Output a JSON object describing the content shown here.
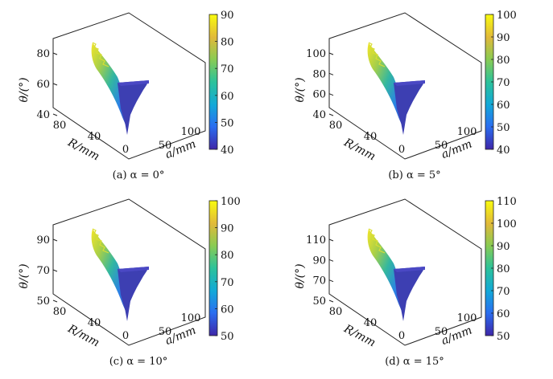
{
  "figure": {
    "panels": [
      {
        "caption": "(a) α = 0°",
        "z_ticks": [
          "40",
          "60",
          "80"
        ],
        "colorbar_ticks": [
          "40",
          "50",
          "60",
          "70",
          "80",
          "90"
        ]
      },
      {
        "caption": "(b) α = 5°",
        "z_ticks": [
          "40",
          "60",
          "80",
          "100"
        ],
        "colorbar_ticks": [
          "40",
          "50",
          "60",
          "70",
          "80",
          "90",
          "100"
        ]
      },
      {
        "caption": "(c) α = 10°",
        "z_ticks": [
          "50",
          "70",
          "90"
        ],
        "colorbar_ticks": [
          "50",
          "60",
          "70",
          "80",
          "90",
          "100"
        ]
      },
      {
        "caption": "(d) α = 15°",
        "z_ticks": [
          "50",
          "70",
          "90",
          "110"
        ],
        "colorbar_ticks": [
          "50",
          "60",
          "70",
          "80",
          "90",
          "100",
          "110"
        ]
      }
    ],
    "axis_labels": {
      "z": "θ/(°)",
      "y": "R/mm",
      "x": "a/mm"
    },
    "y_ticks": [
      "80",
      "40",
      "0"
    ],
    "x_ticks": [
      "50",
      "100"
    ],
    "colormap": [
      "#3e26a8",
      "#2a6ef0",
      "#12a8d8",
      "#2cc29a",
      "#8bcb52",
      "#e1b93a",
      "#f9fb0e"
    ]
  },
  "chart_data": [
    {
      "type": "surface",
      "title": "(a) α = 0°",
      "xlabel": "a/mm",
      "ylabel": "R/mm",
      "zlabel": "θ/(°)",
      "xlim": [
        0,
        120
      ],
      "ylim": [
        0,
        100
      ],
      "zlim": [
        35,
        90
      ],
      "x_ticks": [
        50,
        100
      ],
      "y_ticks": [
        0,
        40,
        80
      ],
      "z_ticks": [
        40,
        60,
        80
      ],
      "colorbar": {
        "range": [
          40,
          90
        ],
        "ticks": [
          40,
          50,
          60,
          70,
          80,
          90
        ]
      },
      "approx_theta_range": [
        40,
        90
      ]
    },
    {
      "type": "surface",
      "title": "(b) α = 5°",
      "xlabel": "a/mm",
      "ylabel": "R/mm",
      "zlabel": "θ/(°)",
      "xlim": [
        0,
        120
      ],
      "ylim": [
        0,
        100
      ],
      "zlim": [
        35,
        105
      ],
      "x_ticks": [
        50,
        100
      ],
      "y_ticks": [
        0,
        40,
        80
      ],
      "z_ticks": [
        40,
        60,
        80,
        100
      ],
      "colorbar": {
        "range": [
          40,
          100
        ],
        "ticks": [
          40,
          50,
          60,
          70,
          80,
          90,
          100
        ]
      },
      "approx_theta_range": [
        40,
        100
      ]
    },
    {
      "type": "surface",
      "title": "(c) α = 10°",
      "xlabel": "a/mm",
      "ylabel": "R/mm",
      "zlabel": "θ/(°)",
      "xlim": [
        0,
        120
      ],
      "ylim": [
        0,
        100
      ],
      "zlim": [
        45,
        100
      ],
      "x_ticks": [
        50,
        100
      ],
      "y_ticks": [
        0,
        40,
        80
      ],
      "z_ticks": [
        50,
        70,
        90
      ],
      "colorbar": {
        "range": [
          50,
          100
        ],
        "ticks": [
          50,
          60,
          70,
          80,
          90,
          100
        ]
      },
      "approx_theta_range": [
        50,
        100
      ]
    },
    {
      "type": "surface",
      "title": "(d) α = 15°",
      "xlabel": "a/mm",
      "ylabel": "R/mm",
      "zlabel": "θ/(°)",
      "xlim": [
        0,
        120
      ],
      "ylim": [
        0,
        100
      ],
      "zlim": [
        45,
        115
      ],
      "x_ticks": [
        50,
        100
      ],
      "y_ticks": [
        0,
        40,
        80
      ],
      "z_ticks": [
        50,
        70,
        90,
        110
      ],
      "colorbar": {
        "range": [
          50,
          110
        ],
        "ticks": [
          50,
          60,
          70,
          80,
          90,
          100,
          110
        ]
      },
      "approx_theta_range": [
        50,
        110
      ]
    }
  ]
}
